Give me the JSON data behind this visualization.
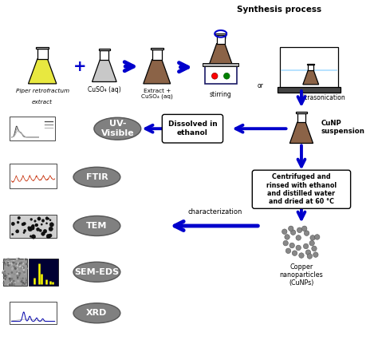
{
  "title": "Synthesis process",
  "bg_color": "#ffffff",
  "arrow_color": "#0000cc",
  "flask_brown": "#8B6347",
  "flask_yellow": "#E8E840",
  "flask_gray": "#C8C8C8",
  "oval_color": "#808080",
  "oval_text_color": "#ffffff",
  "box_labels": [
    "Dissolved in\nethanol",
    "Centrifuged and\nrinsed with ethanol\nand distilled water\nand dried at 60 °C"
  ],
  "oval_labels": [
    "UV-\nVisible",
    "FTIR",
    "TEM",
    "SEM-EDS",
    "XRD"
  ],
  "flask1_label_italic": "Piper retrofractum",
  "flask1_label2": "extract",
  "flask2_label": "CuSO₄ (aq)",
  "flask3_label": "Extract +\nCuSO₄ (aq)",
  "stirring_label": "stirring",
  "or_label": "or",
  "ultrasonication_label": "ultrasonication",
  "cunp_suspension_label": "CuNP\nsuspension",
  "characterization_label": "characterization",
  "copper_np_label": "Copper\nnanoparticles\n(CuNPs)"
}
